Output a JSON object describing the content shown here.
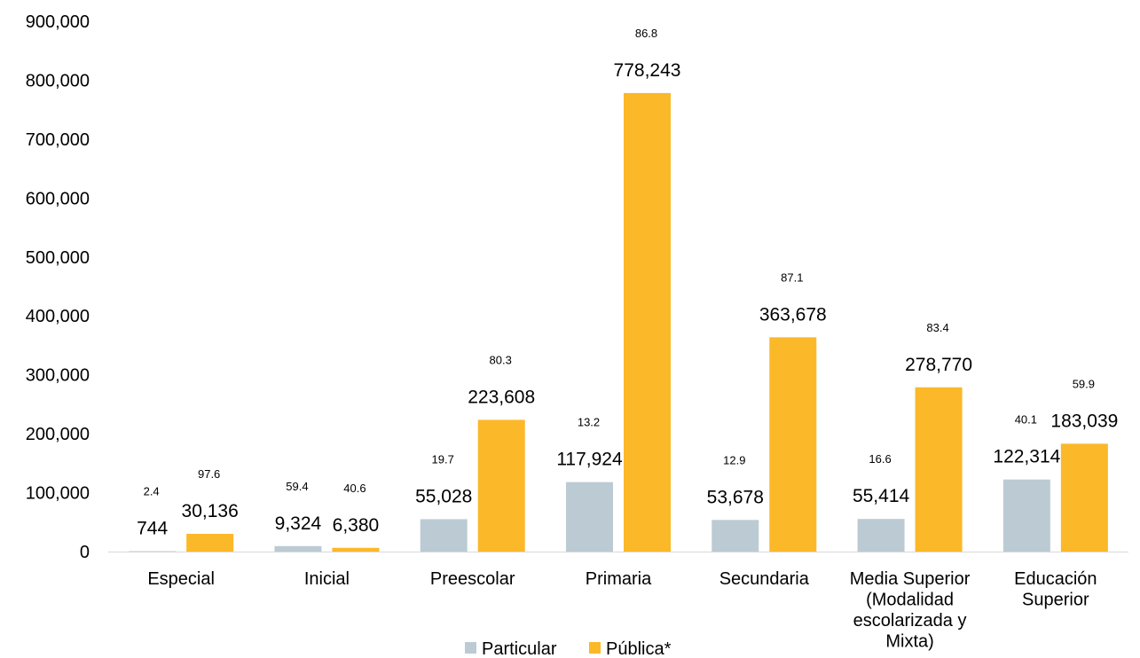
{
  "chart_data": {
    "type": "bar",
    "categories": [
      [
        "Especial"
      ],
      [
        "Inicial"
      ],
      [
        "Preescolar"
      ],
      [
        "Primaria"
      ],
      [
        "Secundaria"
      ],
      [
        "Media Superior",
        "(Modalidad",
        "escolarizada y",
        "Mixta)"
      ],
      [
        "Educación",
        "Superior"
      ]
    ],
    "series": [
      {
        "name": "Particular",
        "color": "#BCCBD3",
        "values": [
          744,
          9324,
          55028,
          117924,
          53678,
          55414,
          122314
        ],
        "labels": [
          "744",
          "9,324",
          "55,028",
          "117,924",
          "53,678",
          "55,414",
          "122,314"
        ],
        "percent_labels": [
          "2.4",
          "59.4",
          "19.7",
          "13.2",
          "12.9",
          "16.6",
          "40.1"
        ]
      },
      {
        "name": "Pública*",
        "color": "#FBB829",
        "values": [
          30136,
          6380,
          223608,
          778243,
          363678,
          278770,
          183039
        ],
        "labels": [
          "30,136",
          "6,380",
          "223,608",
          "778,243",
          "363,678",
          "278,770",
          "183,039"
        ],
        "percent_labels": [
          "97.6",
          "40.6",
          "80.3",
          "86.8",
          "87.1",
          "83.4",
          "59.9"
        ]
      }
    ],
    "y_ticks": [
      "0",
      "100,000",
      "200,000",
      "300,000",
      "400,000",
      "500,000",
      "600,000",
      "700,000",
      "800,000",
      "900,000"
    ],
    "ylim": [
      0,
      900000
    ],
    "grid": false,
    "legend": "bottom",
    "axis_color": "#D9D9D9"
  }
}
